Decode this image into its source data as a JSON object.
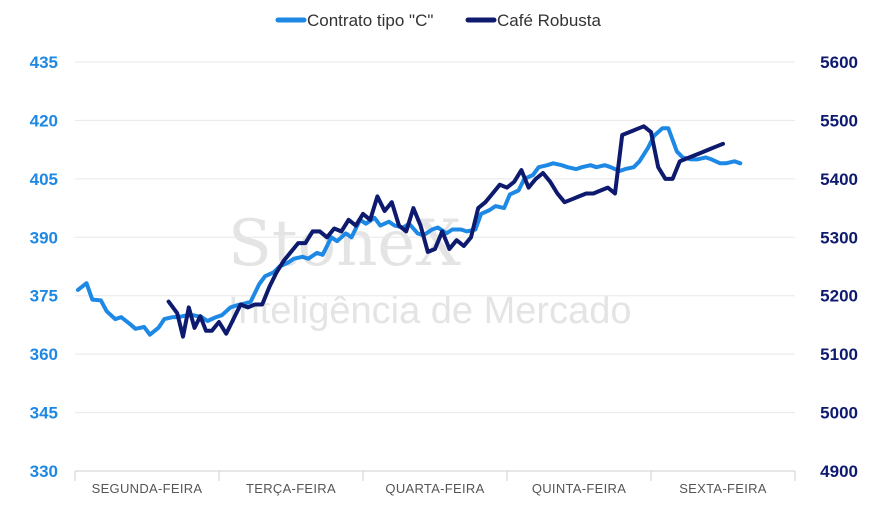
{
  "colors": {
    "series_c": "#1e88e5",
    "series_robusta": "#0d1a6e",
    "left_axis": "#1e88e5",
    "right_axis": "#0d1a6e",
    "grid": "#e8e8e8",
    "watermark": "#e4e4e4"
  },
  "watermark": {
    "brand": "StoneX",
    "tagline": "Inteligência de Mercado"
  },
  "chart_data": {
    "type": "line",
    "title": "",
    "xlabel": "",
    "categories": [
      "SEGUNDA-FEIRA",
      "TERÇA-FEIRA",
      "QUARTA-FEIRA",
      "QUINTA-FEIRA",
      "SEXTA-FEIRA"
    ],
    "x_range": [
      0,
      5
    ],
    "grid": true,
    "legend_position": "top-center",
    "y_left": {
      "ticks": [
        330,
        345,
        360,
        375,
        390,
        405,
        420,
        435
      ],
      "range": [
        330,
        435
      ]
    },
    "y_right": {
      "ticks": [
        4900,
        5000,
        5100,
        5200,
        5300,
        5400,
        5500,
        5600
      ],
      "range": [
        4900,
        5600
      ]
    },
    "series": [
      {
        "name": "Contrato tipo \"C\"",
        "axis": "left",
        "x": [
          0.02,
          0.08,
          0.12,
          0.18,
          0.22,
          0.28,
          0.32,
          0.38,
          0.42,
          0.48,
          0.52,
          0.58,
          0.62,
          0.68,
          0.72,
          0.78,
          0.82,
          0.88,
          0.92,
          0.98,
          1.02,
          1.08,
          1.12,
          1.18,
          1.22,
          1.28,
          1.32,
          1.38,
          1.42,
          1.48,
          1.52,
          1.58,
          1.62,
          1.68,
          1.72,
          1.78,
          1.82,
          1.88,
          1.92,
          1.98,
          2.02,
          2.08,
          2.12,
          2.18,
          2.22,
          2.28,
          2.32,
          2.38,
          2.42,
          2.48,
          2.52,
          2.58,
          2.62,
          2.68,
          2.72,
          2.78,
          2.82,
          2.88,
          2.92,
          2.98,
          3.02,
          3.08,
          3.12,
          3.18,
          3.22,
          3.28,
          3.32,
          3.38,
          3.42,
          3.48,
          3.52,
          3.58,
          3.62,
          3.68,
          3.72,
          3.78,
          3.82,
          3.88,
          3.92,
          3.98,
          4.02,
          4.08,
          4.12,
          4.18,
          4.22,
          4.28,
          4.32,
          4.38,
          4.42,
          4.48,
          4.52,
          4.58,
          4.62
        ],
        "values": [
          376.5,
          378.2,
          374,
          373.8,
          371,
          369,
          369.5,
          367.8,
          366.5,
          367,
          365,
          366.8,
          369,
          369.5,
          369.5,
          370,
          370,
          369.5,
          368.5,
          369.5,
          370,
          372,
          372.5,
          373,
          373.5,
          378,
          380,
          381,
          382.5,
          383.5,
          384.5,
          385,
          384.5,
          386,
          385.5,
          390,
          389,
          391,
          390,
          394.5,
          393.5,
          395,
          393,
          394,
          393,
          392.5,
          393.5,
          391,
          390.5,
          392,
          392.5,
          391,
          392,
          392,
          391.5,
          392,
          396,
          397,
          398,
          397.5,
          401,
          402,
          405,
          406,
          408,
          408.5,
          409,
          408.5,
          408,
          407.5,
          408,
          408.5,
          408,
          408.5,
          408,
          407,
          407.5,
          408,
          409.5,
          413,
          416,
          418,
          418,
          412,
          410.5,
          410,
          410,
          410.5,
          410,
          409,
          409,
          409.5,
          409
        ]
      },
      {
        "name": "Café Robusta",
        "axis": "right",
        "x": [
          0.65,
          0.71,
          0.75,
          0.79,
          0.83,
          0.87,
          0.91,
          0.95,
          1.0,
          1.05,
          1.1,
          1.15,
          1.2,
          1.25,
          1.3,
          1.35,
          1.4,
          1.45,
          1.5,
          1.55,
          1.6,
          1.65,
          1.7,
          1.75,
          1.8,
          1.85,
          1.9,
          1.95,
          2.0,
          2.05,
          2.1,
          2.15,
          2.2,
          2.25,
          2.3,
          2.35,
          2.4,
          2.45,
          2.5,
          2.55,
          2.6,
          2.65,
          2.7,
          2.75,
          2.8,
          2.85,
          2.9,
          2.95,
          3.0,
          3.05,
          3.1,
          3.15,
          3.2,
          3.25,
          3.3,
          3.35,
          3.4,
          3.45,
          3.5,
          3.55,
          3.6,
          3.65,
          3.7,
          3.75,
          3.8,
          3.85,
          3.9,
          3.95,
          4.0,
          4.05,
          4.1,
          4.15,
          4.2,
          4.25,
          4.3,
          4.35,
          4.4,
          4.45,
          4.5
        ],
        "values": [
          5190,
          5170,
          5130,
          5180,
          5145,
          5165,
          5140,
          5140,
          5155,
          5135,
          5160,
          5185,
          5180,
          5185,
          5185,
          5215,
          5240,
          5260,
          5275,
          5290,
          5290,
          5310,
          5310,
          5300,
          5315,
          5310,
          5330,
          5320,
          5340,
          5330,
          5370,
          5345,
          5360,
          5320,
          5310,
          5350,
          5320,
          5275,
          5280,
          5310,
          5280,
          5295,
          5285,
          5300,
          5350,
          5360,
          5375,
          5390,
          5385,
          5395,
          5415,
          5385,
          5400,
          5410,
          5395,
          5375,
          5360,
          5365,
          5370,
          5375,
          5375,
          5380,
          5385,
          5375,
          5475,
          5480,
          5485,
          5490,
          5480,
          5420,
          5400,
          5400,
          5430,
          5435,
          5440,
          5445,
          5450,
          5455,
          5460
        ]
      }
    ]
  }
}
